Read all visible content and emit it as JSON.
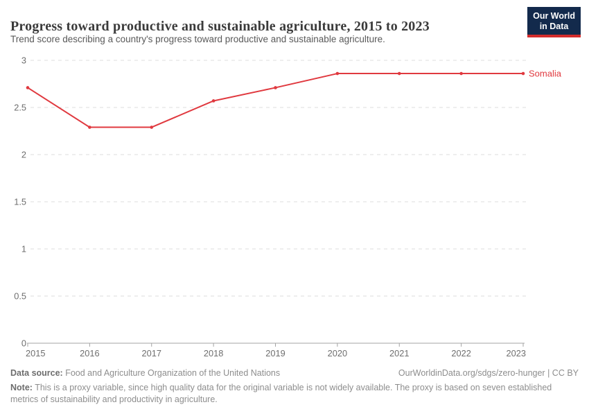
{
  "header": {
    "title": "Progress toward productive and sustainable agriculture, 2015 to 2023",
    "subtitle": "Trend score describing a country's progress toward productive and sustainable agriculture."
  },
  "logo": {
    "line1": "Our World",
    "line2": "in Data",
    "bg_color": "#132a4c",
    "accent_color": "#d32c2c"
  },
  "chart_data": {
    "type": "line",
    "title": "Progress toward productive and sustainable agriculture, 2015 to 2023",
    "x": [
      2015,
      2016,
      2017,
      2018,
      2019,
      2020,
      2021,
      2022,
      2023
    ],
    "series": [
      {
        "name": "Somalia",
        "color": "#e0393f",
        "values": [
          2.71,
          2.29,
          2.29,
          2.57,
          2.71,
          2.86,
          2.86,
          2.86,
          2.86
        ]
      }
    ],
    "xlabel": "",
    "ylabel": "",
    "ylim": [
      0,
      3
    ],
    "yticks": [
      0,
      0.5,
      1,
      1.5,
      2,
      2.5,
      3
    ],
    "grid": "horizontal-dashed",
    "grid_color": "#dcdcdc",
    "axis_color": "#a3a3a3",
    "tick_label_color": "#6e6e6e",
    "legend": "end-of-line-label"
  },
  "footer": {
    "data_source_label": "Data source:",
    "data_source": "Food and Agriculture Organization of the United Nations",
    "license": "OurWorldinData.org/sdgs/zero-hunger | CC BY",
    "note_label": "Note:",
    "note": "This is a proxy variable, since high quality data for the original variable is not widely available. The proxy is based on seven established metrics of sustainability and productivity in agriculture."
  }
}
